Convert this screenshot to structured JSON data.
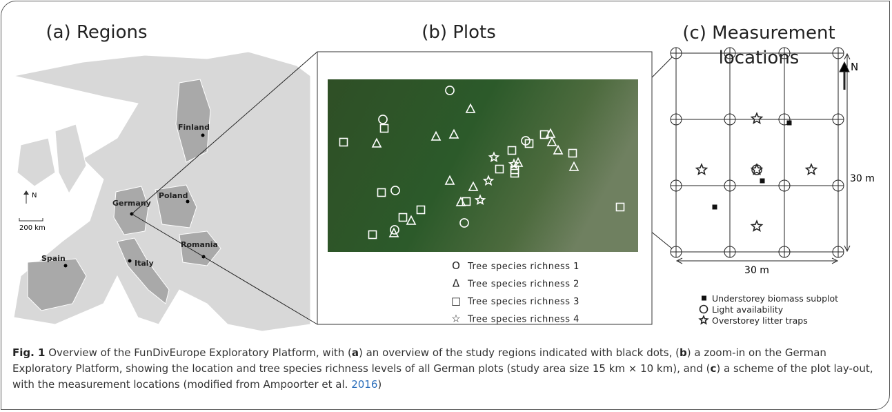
{
  "panels": {
    "a": {
      "title": "(a) Regions",
      "countries": [
        "Finland",
        "Poland",
        "Germany",
        "Romania",
        "Spain",
        "Italy"
      ],
      "north": "N",
      "scale": "200 km"
    },
    "b": {
      "title": "(b) Plots",
      "legend": [
        {
          "symbol": "O",
          "label": "Tree species richness 1"
        },
        {
          "symbol": "Δ",
          "label": "Tree species richness 2"
        },
        {
          "symbol": "□",
          "label": "Tree species richness 3"
        },
        {
          "symbol": "☆",
          "label": "Tree species richness 4"
        }
      ]
    },
    "c": {
      "title": "(c) Measurement locations",
      "north": "N",
      "height_label": "30 m",
      "width_label": "30 m",
      "legend": [
        "Understorey biomass subplot",
        "Light availability",
        "Overstorey litter traps"
      ]
    }
  },
  "caption": {
    "label": "Fig. 1",
    "segments": [
      " Overview of the FunDivEurope Exploratory Platform, with (",
      "a",
      ") an overview of the study regions indicated with black dots, (",
      "b",
      ") a zoom-in on the German Exploratory Platform, showing the location and tree species richness levels of all German plots (study area size 15 km × 10 km), and (",
      "c",
      ") a scheme of the plot lay-out, with the measurement locations (modified from Ampoorter et al. ",
      "2016",
      ")"
    ]
  }
}
